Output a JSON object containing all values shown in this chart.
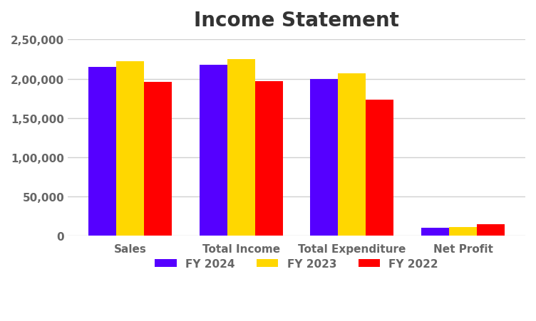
{
  "title": "Income Statement",
  "categories": [
    "Sales",
    "Total Income",
    "Total Expenditure",
    "Net Profit"
  ],
  "series": [
    {
      "label": "FY 2024",
      "color": "#5500FF",
      "values": [
        215000,
        218000,
        200000,
        10000
      ]
    },
    {
      "label": "FY 2023",
      "color": "#FFD700",
      "values": [
        222000,
        225000,
        207000,
        11000
      ]
    },
    {
      "label": "FY 2022",
      "color": "#FF0000",
      "values": [
        196000,
        197000,
        173000,
        14000
      ]
    }
  ],
  "ylim": [
    0,
    250000
  ],
  "yticks": [
    0,
    50000,
    100000,
    150000,
    200000,
    250000
  ],
  "ytick_labels": [
    "0",
    "50,000",
    "1,00,000",
    "1,50,000",
    "2,00,000",
    "2,50,000"
  ],
  "bar_width": 0.25,
  "title_fontsize": 20,
  "tick_fontsize": 11,
  "legend_fontsize": 11,
  "figure_bg": "#ffffff",
  "plot_bg": "#ffffff",
  "grid_color": "#d0d0d0",
  "tick_color": "#666666",
  "title_color": "#333333"
}
